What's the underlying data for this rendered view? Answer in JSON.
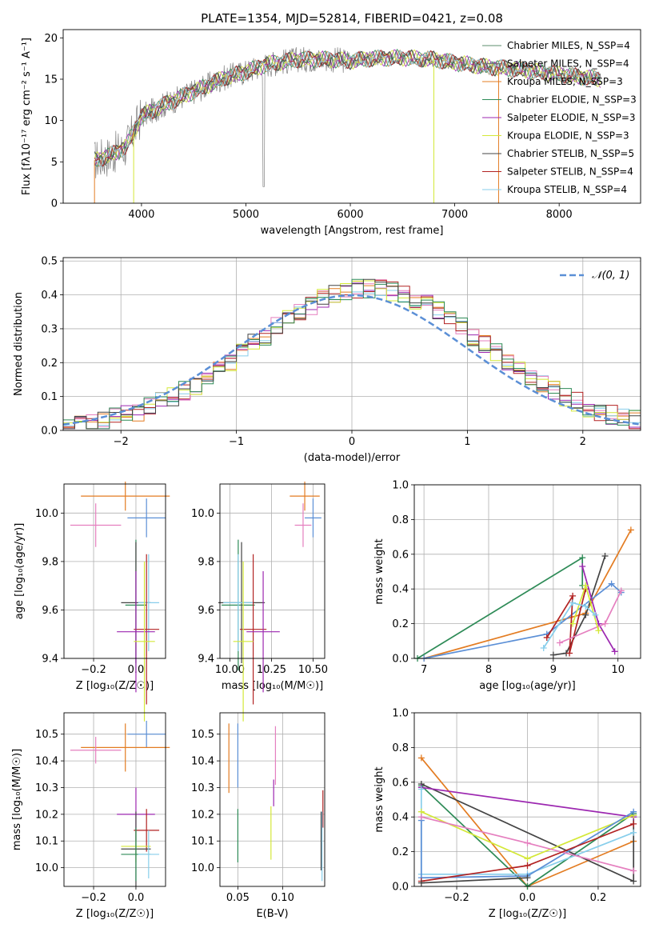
{
  "chart_data": [
    {
      "id": "spectrum",
      "type": "line",
      "title": "PLATE=1354, MJD=52814, FIBERID=0421, z=0.08",
      "xlabel": "wavelength [Angstrom, rest frame]",
      "ylabel": "Flux [fλ10⁻¹⁷ erg cm⁻² s⁻¹ A⁻¹]",
      "xlim": [
        3250,
        8780
      ],
      "ylim": [
        0,
        21
      ],
      "xticks": [
        4000,
        5000,
        6000,
        7000,
        8000
      ],
      "yticks": [
        0,
        5,
        10,
        15,
        20
      ],
      "legend_position": "right",
      "legend": [
        {
          "label": "Chabrier MILES, N_SSP=4",
          "color": "#5c8c6e"
        },
        {
          "label": "Salpeter MILES, N_SSP=4",
          "color": "#777777"
        },
        {
          "label": "Kroupa MILES, N_SSP=3",
          "color": "#e37c22"
        },
        {
          "label": "Chabrier ELODIE, N_SSP=3",
          "color": "#2e8b57"
        },
        {
          "label": "Salpeter ELODIE, N_SSP=3",
          "color": "#9c27b0"
        },
        {
          "label": "Kroupa ELODIE, N_SSP=3",
          "color": "#d4e838"
        },
        {
          "label": "Chabrier STELIB, N_SSP=5",
          "color": "#444444"
        },
        {
          "label": "Salpeter STELIB, N_SSP=4",
          "color": "#b22222"
        },
        {
          "label": "Kroupa STELIB, N_SSP=4",
          "color": "#87ceeb"
        }
      ],
      "continuum": [
        [
          3550,
          5.2
        ],
        [
          3700,
          5.8
        ],
        [
          3850,
          6.8
        ],
        [
          4000,
          10.5
        ],
        [
          4200,
          11.8
        ],
        [
          4500,
          13.5
        ],
        [
          4800,
          15.2
        ],
        [
          5000,
          15.9
        ],
        [
          5200,
          16.8
        ],
        [
          5500,
          17.4
        ],
        [
          5800,
          17.4
        ],
        [
          6000,
          17.2
        ],
        [
          6200,
          17.5
        ],
        [
          6500,
          17.6
        ],
        [
          6800,
          17.4
        ],
        [
          7000,
          17.0
        ],
        [
          7300,
          16.5
        ],
        [
          7600,
          16.2
        ],
        [
          8000,
          15.6
        ],
        [
          8400,
          15.0
        ]
      ]
    },
    {
      "id": "residuals",
      "type": "line",
      "xlabel": "(data-model)/error",
      "ylabel": "Normed distribution",
      "xlim": [
        -2.5,
        2.5
      ],
      "ylim": [
        0,
        0.51
      ],
      "xticks": [
        -2,
        -1,
        0,
        1,
        2
      ],
      "yticks": [
        0.0,
        0.1,
        0.2,
        0.3,
        0.4,
        0.5
      ],
      "legend": [
        {
          "label": "𝒩(0, 1)",
          "color": "#5b8fd6"
        }
      ]
    },
    {
      "id": "age_vs_Z",
      "type": "scatter",
      "xlabel": "Z [log₁₀(Z/Z☉)]",
      "ylabel": "age  [log₁₀(age/yr)]",
      "xlim": [
        -0.34,
        0.14
      ],
      "ylim": [
        9.4,
        10.12
      ],
      "xticks": [
        -0.2,
        0.0
      ],
      "yticks": [
        9.4,
        9.6,
        9.8,
        10.0
      ],
      "points": [
        {
          "color": "#e37c22",
          "x": -0.05,
          "y": 10.07,
          "xerr": 0.21,
          "yerr": 0.06
        },
        {
          "color": "#5b8fd6",
          "x": 0.05,
          "y": 9.98,
          "xerr": 0.09,
          "yerr": 0.08
        },
        {
          "color": "#e57fbf",
          "x": -0.19,
          "y": 9.95,
          "xerr": 0.12,
          "yerr": 0.09
        },
        {
          "color": "#2e8b57",
          "x": 0.0,
          "y": 9.62,
          "xerr": 0.05,
          "yerr": 0.27
        },
        {
          "color": "#444444",
          "x": 0.0,
          "y": 9.63,
          "xerr": 0.07,
          "yerr": 0.25
        },
        {
          "color": "#87ceeb",
          "x": 0.06,
          "y": 9.63,
          "xerr": 0.05,
          "yerr": 0.2
        },
        {
          "color": "#b22222",
          "x": 0.05,
          "y": 9.52,
          "xerr": 0.06,
          "yerr": 0.31
        },
        {
          "color": "#9c27b0",
          "x": 0.0,
          "y": 9.51,
          "xerr": 0.09,
          "yerr": 0.25
        },
        {
          "color": "#d4e838",
          "x": 0.04,
          "y": 9.47,
          "xerr": 0.05,
          "yerr": 0.33
        }
      ]
    },
    {
      "id": "age_vs_mass",
      "type": "scatter",
      "xlabel": "mass [log₁₀(M/M☉)]",
      "ylabel": "",
      "xlim": [
        9.94,
        10.57
      ],
      "ylim": [
        9.4,
        10.12
      ],
      "xticks": [
        10.0,
        10.25,
        10.5
      ],
      "yticks": [
        9.4,
        9.6,
        9.8,
        10.0
      ],
      "points": [
        {
          "color": "#e37c22",
          "x": 10.45,
          "y": 10.07,
          "xerr": 0.09,
          "yerr": 0.06
        },
        {
          "color": "#5b8fd6",
          "x": 10.5,
          "y": 9.98,
          "xerr": 0.05,
          "yerr": 0.08
        },
        {
          "color": "#e57fbf",
          "x": 10.44,
          "y": 9.95,
          "xerr": 0.05,
          "yerr": 0.09
        },
        {
          "color": "#2e8b57",
          "x": 10.05,
          "y": 9.62,
          "xerr": 0.1,
          "yerr": 0.27
        },
        {
          "color": "#444444",
          "x": 10.07,
          "y": 9.63,
          "xerr": 0.14,
          "yerr": 0.25
        },
        {
          "color": "#87ceeb",
          "x": 10.05,
          "y": 9.63,
          "xerr": 0.09,
          "yerr": 0.2
        },
        {
          "color": "#b22222",
          "x": 10.14,
          "y": 9.52,
          "xerr": 0.08,
          "yerr": 0.31
        },
        {
          "color": "#9c27b0",
          "x": 10.2,
          "y": 9.51,
          "xerr": 0.1,
          "yerr": 0.25
        },
        {
          "color": "#d4e838",
          "x": 10.08,
          "y": 9.47,
          "xerr": 0.06,
          "yerr": 0.33
        }
      ]
    },
    {
      "id": "weight_vs_age",
      "type": "line",
      "xlabel": "age  [log₁₀(age/yr)]",
      "ylabel": "mass weight",
      "xlim": [
        6.85,
        10.35
      ],
      "ylim": [
        0,
        1.0
      ],
      "xticks": [
        7,
        8,
        9,
        10
      ],
      "yticks": [
        0.0,
        0.2,
        0.4,
        0.6,
        0.8,
        1.0
      ],
      "series": [
        {
          "color": "#2e8b57",
          "x": [
            6.9,
            9.45,
            9.45
          ],
          "y": [
            0.0,
            0.58,
            0.42
          ]
        },
        {
          "color": "#e37c22",
          "x": [
            7.0,
            9.5,
            10.2
          ],
          "y": [
            0.0,
            0.26,
            0.74
          ]
        },
        {
          "color": "#5b8fd6",
          "x": [
            7.0,
            8.9,
            9.9,
            10.05
          ],
          "y": [
            0.0,
            0.14,
            0.43,
            0.38
          ]
        },
        {
          "color": "#444444",
          "x": [
            9.0,
            9.2,
            9.5,
            9.8
          ],
          "y": [
            0.02,
            0.03,
            0.25,
            0.59
          ]
        },
        {
          "color": "#b22222",
          "x": [
            8.9,
            9.3,
            9.25,
            9.5
          ],
          "y": [
            0.12,
            0.36,
            0.03,
            0.4
          ]
        },
        {
          "color": "#9c27b0",
          "x": [
            9.45,
            9.7,
            9.95
          ],
          "y": [
            0.53,
            0.2,
            0.04
          ]
        },
        {
          "color": "#e57fbf",
          "x": [
            9.1,
            9.8,
            10.05
          ],
          "y": [
            0.09,
            0.2,
            0.39
          ]
        },
        {
          "color": "#d4e838",
          "x": [
            9.3,
            9.5,
            9.7
          ],
          "y": [
            0.2,
            0.42,
            0.16
          ]
        },
        {
          "color": "#87ceeb",
          "x": [
            8.85,
            9.3,
            9.5,
            9.65
          ],
          "y": [
            0.06,
            0.32,
            0.3,
            0.25
          ]
        }
      ]
    },
    {
      "id": "mass_vs_Z",
      "type": "scatter",
      "xlabel": "Z [log₁₀(Z/Z☉)]",
      "ylabel": "mass [log₁₀(M/M☉)]",
      "xlim": [
        -0.34,
        0.14
      ],
      "ylim": [
        9.93,
        10.58
      ],
      "xticks": [
        -0.2,
        0.0
      ],
      "yticks": [
        10.0,
        10.1,
        10.2,
        10.3,
        10.4,
        10.5
      ],
      "points": [
        {
          "color": "#5b8fd6",
          "x": 0.05,
          "y": 10.5,
          "xerr": 0.09,
          "yerr": 0.05
        },
        {
          "color": "#e37c22",
          "x": -0.05,
          "y": 10.45,
          "xerr": 0.21,
          "yerr": 0.09
        },
        {
          "color": "#e57fbf",
          "x": -0.19,
          "y": 10.44,
          "xerr": 0.12,
          "yerr": 0.05
        },
        {
          "color": "#9c27b0",
          "x": 0.0,
          "y": 10.2,
          "xerr": 0.09,
          "yerr": 0.1
        },
        {
          "color": "#b22222",
          "x": 0.05,
          "y": 10.14,
          "xerr": 0.06,
          "yerr": 0.08
        },
        {
          "color": "#d4e838",
          "x": 0.0,
          "y": 10.08,
          "xerr": 0.07,
          "yerr": 0.06
        },
        {
          "color": "#444444",
          "x": 0.0,
          "y": 10.07,
          "xerr": 0.07,
          "yerr": 0.14
        },
        {
          "color": "#2e8b57",
          "x": 0.0,
          "y": 10.05,
          "xerr": 0.07,
          "yerr": 0.1
        },
        {
          "color": "#87ceeb",
          "x": 0.06,
          "y": 10.05,
          "xerr": 0.05,
          "yerr": 0.09
        }
      ]
    },
    {
      "id": "mass_vs_ebv",
      "type": "scatter",
      "xlabel": "E(B-V)",
      "ylabel": "",
      "xlim": [
        0.03,
        0.147
      ],
      "ylim": [
        9.93,
        10.58
      ],
      "xticks": [
        0.05,
        0.1
      ],
      "yticks": [
        10.0,
        10.1,
        10.2,
        10.3,
        10.4,
        10.5
      ],
      "points": [
        {
          "color": "#e37c22",
          "x": 0.04,
          "y": 10.41,
          "yerr": 0.13
        },
        {
          "color": "#5b8fd6",
          "x": 0.05,
          "y": 10.42,
          "yerr": 0.12
        },
        {
          "color": "#e57fbf",
          "x": 0.092,
          "y": 10.42,
          "yerr": 0.11
        },
        {
          "color": "#2e8b57",
          "x": 0.05,
          "y": 10.12,
          "yerr": 0.1
        },
        {
          "color": "#d4e838",
          "x": 0.087,
          "y": 10.13,
          "yerr": 0.1
        },
        {
          "color": "#9c27b0",
          "x": 0.09,
          "y": 10.28,
          "yerr": 0.05
        },
        {
          "color": "#b22222",
          "x": 0.145,
          "y": 10.22,
          "yerr": 0.07
        },
        {
          "color": "#87ceeb",
          "x": 0.144,
          "y": 10.08,
          "yerr": 0.13
        },
        {
          "color": "#444444",
          "x": 0.143,
          "y": 10.1,
          "yerr": 0.11
        }
      ]
    },
    {
      "id": "weight_vs_Z",
      "type": "line",
      "xlabel": "Z [log₁₀(Z/Z☉)]",
      "ylabel": "mass weight",
      "xlim": [
        -0.32,
        0.32
      ],
      "ylim": [
        0,
        1.0
      ],
      "xticks": [
        -0.2,
        0.0,
        0.2
      ],
      "yticks": [
        0.0,
        0.2,
        0.4,
        0.6,
        0.8,
        1.0
      ],
      "series": [
        {
          "color": "#e37c22",
          "x": [
            -0.3,
            0.0,
            0.3
          ],
          "y": [
            0.74,
            0.0,
            0.26
          ]
        },
        {
          "color": "#2e8b57",
          "x": [
            -0.3,
            0.0,
            0.3
          ],
          "y": [
            0.58,
            0.0,
            0.42
          ]
        },
        {
          "color": "#444444",
          "x": [
            -0.3,
            0.3,
            0.3
          ],
          "y": [
            0.59,
            0.03,
            0.41
          ]
        },
        {
          "color": "#9c27b0",
          "x": [
            -0.3,
            0.3
          ],
          "y": [
            0.57,
            0.4
          ]
        },
        {
          "color": "#87ceeb",
          "x": [
            -0.3,
            -0.3,
            0.0,
            0.3
          ],
          "y": [
            0.56,
            0.07,
            0.07,
            0.31
          ]
        },
        {
          "color": "#d4e838",
          "x": [
            -0.3,
            0.0,
            0.3
          ],
          "y": [
            0.43,
            0.16,
            0.41
          ]
        },
        {
          "color": "#5b8fd6",
          "x": [
            -0.3,
            -0.3,
            0.0,
            0.3
          ],
          "y": [
            0.38,
            0.05,
            0.06,
            0.43
          ]
        },
        {
          "color": "#e57fbf",
          "x": [
            -0.3,
            0.0,
            0.3
          ],
          "y": [
            0.4,
            0.25,
            0.09
          ]
        },
        {
          "color": "#b22222",
          "x": [
            -0.3,
            0.0,
            0.3
          ],
          "y": [
            0.03,
            0.12,
            0.36
          ]
        },
        {
          "color": "#444444",
          "x": [
            -0.3,
            0.0
          ],
          "y": [
            0.02,
            0.05
          ]
        }
      ]
    }
  ]
}
